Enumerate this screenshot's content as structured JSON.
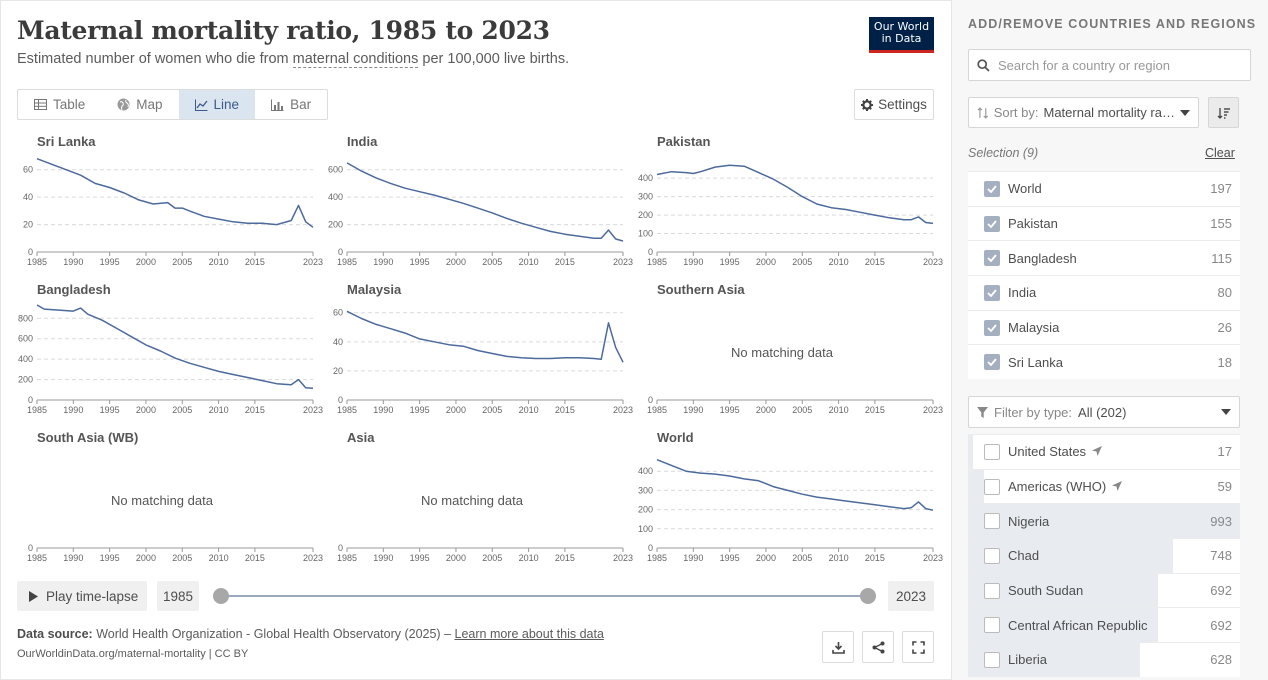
{
  "header": {
    "title": "Maternal mortality ratio, 1985 to 2023",
    "subtitle_pre": "Estimated number of women who die from ",
    "subtitle_link": "maternal conditions",
    "subtitle_post": " per 100,000 live births.",
    "logo_line1": "Our World",
    "logo_line2": "in Data"
  },
  "tabs": [
    {
      "label": "Table",
      "icon": "table-icon"
    },
    {
      "label": "Map",
      "icon": "globe-icon"
    },
    {
      "label": "Line",
      "icon": "line-chart-icon",
      "active": true
    },
    {
      "label": "Bar",
      "icon": "bar-chart-icon"
    }
  ],
  "settings_label": "Settings",
  "x_ticks": [
    "1985",
    "1990",
    "1995",
    "2000",
    "2005",
    "2010",
    "2015",
    "2023"
  ],
  "no_data_text": "No matching data",
  "chart_data": [
    {
      "type": "line",
      "title": "Sri Lanka",
      "yticks": [
        0,
        20,
        40,
        60
      ],
      "ylim": [
        0,
        70
      ],
      "x": [
        1985,
        1987,
        1989,
        1991,
        1993,
        1995,
        1997,
        1999,
        2001,
        2003,
        2004,
        2005,
        2006,
        2008,
        2010,
        2012,
        2014,
        2016,
        2018,
        2020,
        2021,
        2022,
        2023
      ],
      "values": [
        68,
        64,
        60,
        56,
        50,
        47,
        43,
        38,
        35,
        36,
        32,
        32,
        30,
        26,
        24,
        22,
        21,
        21,
        20,
        23,
        34,
        22,
        18
      ]
    },
    {
      "type": "line",
      "title": "India",
      "yticks": [
        0,
        200,
        400,
        600
      ],
      "ylim": [
        0,
        700
      ],
      "x": [
        1985,
        1987,
        1989,
        1991,
        1993,
        1995,
        1997,
        1999,
        2001,
        2003,
        2005,
        2007,
        2009,
        2011,
        2013,
        2015,
        2017,
        2019,
        2020,
        2021,
        2022,
        2023
      ],
      "values": [
        650,
        590,
        540,
        500,
        465,
        440,
        415,
        385,
        355,
        320,
        285,
        245,
        210,
        180,
        150,
        130,
        115,
        100,
        100,
        160,
        95,
        80
      ]
    },
    {
      "type": "line",
      "title": "Pakistan",
      "yticks": [
        0,
        100,
        200,
        300,
        400
      ],
      "ylim": [
        0,
        520
      ],
      "x": [
        1985,
        1987,
        1989,
        1990,
        1991,
        1993,
        1995,
        1997,
        1999,
        2001,
        2003,
        2005,
        2007,
        2009,
        2011,
        2013,
        2015,
        2017,
        2019,
        2020,
        2021,
        2022,
        2023
      ],
      "values": [
        420,
        435,
        430,
        425,
        435,
        460,
        470,
        465,
        430,
        395,
        350,
        300,
        260,
        240,
        230,
        215,
        200,
        185,
        175,
        175,
        190,
        160,
        155
      ]
    },
    {
      "type": "line",
      "title": "Bangladesh",
      "yticks": [
        0,
        200,
        400,
        600,
        800
      ],
      "ylim": [
        0,
        940
      ],
      "x": [
        1985,
        1986,
        1988,
        1990,
        1991,
        1992,
        1994,
        1996,
        1998,
        2000,
        2002,
        2004,
        2006,
        2008,
        2010,
        2012,
        2014,
        2016,
        2018,
        2020,
        2021,
        2022,
        2023
      ],
      "values": [
        930,
        890,
        880,
        870,
        900,
        840,
        780,
        700,
        620,
        540,
        480,
        410,
        360,
        320,
        280,
        250,
        220,
        190,
        160,
        150,
        200,
        120,
        115
      ]
    },
    {
      "type": "line",
      "title": "Malaysia",
      "yticks": [
        0,
        20,
        40,
        60
      ],
      "ylim": [
        0,
        66
      ],
      "x": [
        1985,
        1987,
        1989,
        1991,
        1993,
        1995,
        1997,
        1999,
        2001,
        2003,
        2005,
        2007,
        2009,
        2011,
        2013,
        2015,
        2017,
        2019,
        2020,
        2021,
        2022,
        2023
      ],
      "values": [
        61,
        56,
        52,
        49,
        46,
        42,
        40,
        38,
        37,
        34,
        32,
        30,
        29,
        28.5,
        28.5,
        29,
        29,
        28.5,
        28,
        53,
        36,
        26
      ]
    },
    {
      "type": "line",
      "title": "Southern Asia",
      "yticks": [
        0
      ],
      "no_data": true
    },
    {
      "type": "line",
      "title": "South Asia (WB)",
      "yticks": [
        0
      ],
      "no_data": true
    },
    {
      "type": "line",
      "title": "Asia",
      "yticks": [
        0
      ],
      "no_data": true
    },
    {
      "type": "line",
      "title": "World",
      "yticks": [
        0,
        100,
        200,
        300,
        400
      ],
      "ylim": [
        0,
        500
      ],
      "x": [
        1985,
        1987,
        1989,
        1991,
        1993,
        1995,
        1997,
        1999,
        2001,
        2003,
        2005,
        2007,
        2009,
        2011,
        2013,
        2015,
        2017,
        2019,
        2020,
        2021,
        2022,
        2023
      ],
      "values": [
        460,
        430,
        400,
        390,
        385,
        375,
        360,
        350,
        320,
        300,
        280,
        265,
        255,
        245,
        235,
        225,
        215,
        205,
        210,
        240,
        205,
        197
      ]
    }
  ],
  "timeline": {
    "play_label": "Play time-lapse",
    "start_year": "1985",
    "end_year": "2023"
  },
  "footer": {
    "source_label": "Data source:",
    "source_text": "World Health Organization - Global Health Observatory (2025) – ",
    "learn_more": "Learn more about this data",
    "url": "OurWorldinData.org/maternal-mortality | CC BY"
  },
  "sidebar": {
    "heading": "ADD/REMOVE COUNTRIES AND REGIONS",
    "search_placeholder": "Search for a country or region",
    "sort_label": "Sort by:",
    "sort_value": "Maternal mortality ratio",
    "selection_label": "Selection (9)",
    "clear_label": "Clear",
    "selected": [
      {
        "name": "World",
        "value": "197"
      },
      {
        "name": "Pakistan",
        "value": "155"
      },
      {
        "name": "Bangladesh",
        "value": "115"
      },
      {
        "name": "India",
        "value": "80"
      },
      {
        "name": "Malaysia",
        "value": "26"
      },
      {
        "name": "Sri Lanka",
        "value": "18"
      }
    ],
    "filter_label": "Filter by type:",
    "filter_value": "All (202)",
    "others": [
      {
        "name": "United States",
        "value": "17",
        "located": true,
        "fraction": 0.017
      },
      {
        "name": "Americas (WHO)",
        "value": "59",
        "located": true,
        "fraction": 0.06
      },
      {
        "name": "Nigeria",
        "value": "993",
        "fraction": 1.0
      },
      {
        "name": "Chad",
        "value": "748",
        "fraction": 0.753
      },
      {
        "name": "South Sudan",
        "value": "692",
        "fraction": 0.697
      },
      {
        "name": "Central African Republic",
        "value": "692",
        "fraction": 0.697
      },
      {
        "name": "Liberia",
        "value": "628",
        "fraction": 0.632
      }
    ]
  }
}
